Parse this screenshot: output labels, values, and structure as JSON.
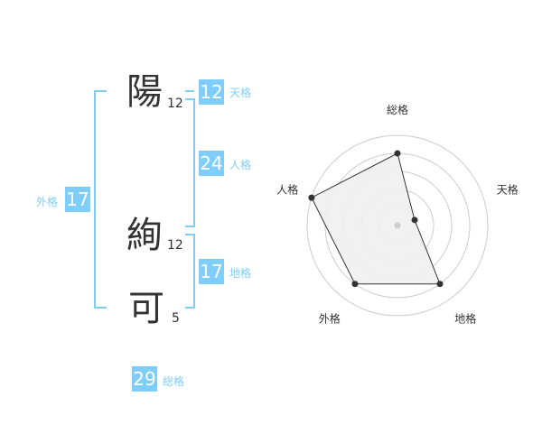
{
  "name": {
    "chars": [
      {
        "char": "陽",
        "strokes": "12"
      },
      {
        "char": "絢",
        "strokes": "12"
      },
      {
        "char": "可",
        "strokes": "5"
      }
    ]
  },
  "scores": {
    "tenkaku": {
      "label": "天格",
      "value": "12"
    },
    "jinkaku": {
      "label": "人格",
      "value": "24"
    },
    "chikaku": {
      "label": "地格",
      "value": "17"
    },
    "gaikaku": {
      "label": "外格",
      "value": "17"
    },
    "soukaku": {
      "label": "総格",
      "value": "29"
    }
  },
  "colors": {
    "accent": "#7fcdfb",
    "text": "#333333",
    "polygon_fill": "#f0f0f0",
    "rings": "#cccccc"
  },
  "chart_data": {
    "type": "radar",
    "axes": [
      "総格",
      "天格",
      "地格",
      "外格",
      "人格"
    ],
    "values": [
      4,
      1,
      4,
      4,
      5
    ],
    "range": [
      0,
      5
    ],
    "rings": 5
  }
}
